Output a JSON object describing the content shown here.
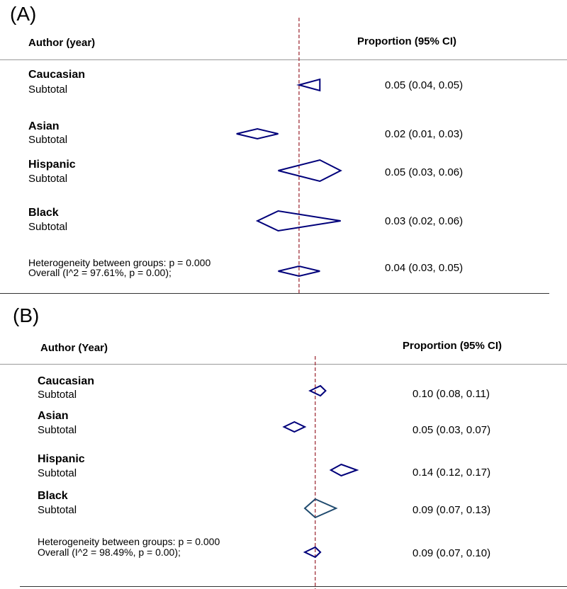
{
  "chart_data": [
    {
      "type": "forest",
      "panel_label": "(A)",
      "header_left": "Author (year)",
      "header_right": "Proportion (95% CI)",
      "reference_line": 0.04,
      "groups": [
        {
          "name": "Caucasian",
          "subtotal_label": "Subtotal",
          "estimate": 0.05,
          "lower": 0.04,
          "upper": 0.05,
          "ci_text": "0.05 (0.04, 0.05)"
        },
        {
          "name": "Asian",
          "subtotal_label": "Subtotal",
          "estimate": 0.02,
          "lower": 0.01,
          "upper": 0.03,
          "ci_text": "0.02 (0.01, 0.03)"
        },
        {
          "name": "Hispanic",
          "subtotal_label": "Subtotal",
          "estimate": 0.05,
          "lower": 0.03,
          "upper": 0.06,
          "ci_text": "0.05 (0.03, 0.06)"
        },
        {
          "name": "Black",
          "subtotal_label": "Subtotal",
          "estimate": 0.03,
          "lower": 0.02,
          "upper": 0.06,
          "ci_text": "0.03 (0.02, 0.06)"
        }
      ],
      "heterogeneity_text": "Heterogeneity between groups: p = 0.000",
      "overall": {
        "label": "Overall  (I^2 = 97.61%, p = 0.00);",
        "estimate": 0.04,
        "lower": 0.03,
        "upper": 0.05,
        "ci_text": "0.04 (0.03, 0.05)"
      },
      "colors": {
        "diamond": "#00007a",
        "reference_line": "#a0303a",
        "rule": "#999999"
      }
    },
    {
      "type": "forest",
      "panel_label": "(B)",
      "header_left": "Author (Year)",
      "header_right": "Proportion (95% CI)",
      "reference_line": 0.09,
      "groups": [
        {
          "name": "Caucasian",
          "subtotal_label": "Subtotal",
          "estimate": 0.1,
          "lower": 0.08,
          "upper": 0.11,
          "ci_text": "0.10 (0.08, 0.11)"
        },
        {
          "name": "Asian",
          "subtotal_label": "Subtotal",
          "estimate": 0.05,
          "lower": 0.03,
          "upper": 0.07,
          "ci_text": "0.05 (0.03, 0.07)"
        },
        {
          "name": "Hispanic",
          "subtotal_label": "Subtotal",
          "estimate": 0.14,
          "lower": 0.12,
          "upper": 0.17,
          "ci_text": "0.14 (0.12, 0.17)"
        },
        {
          "name": "Black",
          "subtotal_label": "Subtotal",
          "estimate": 0.09,
          "lower": 0.07,
          "upper": 0.13,
          "ci_text": "0.09 (0.07, 0.13)"
        }
      ],
      "heterogeneity_text": "Heterogeneity between groups: p = 0.000",
      "overall": {
        "label": "Overall  (I^2 = 98.49%, p = 0.00);",
        "estimate": 0.09,
        "lower": 0.07,
        "upper": 0.1,
        "ci_text": "0.09 (0.07, 0.10)"
      },
      "colors": {
        "diamond": "#00007a",
        "black_diamond": "#1f4a6e",
        "reference_line": "#a0303a",
        "rule": "#999999"
      }
    }
  ]
}
